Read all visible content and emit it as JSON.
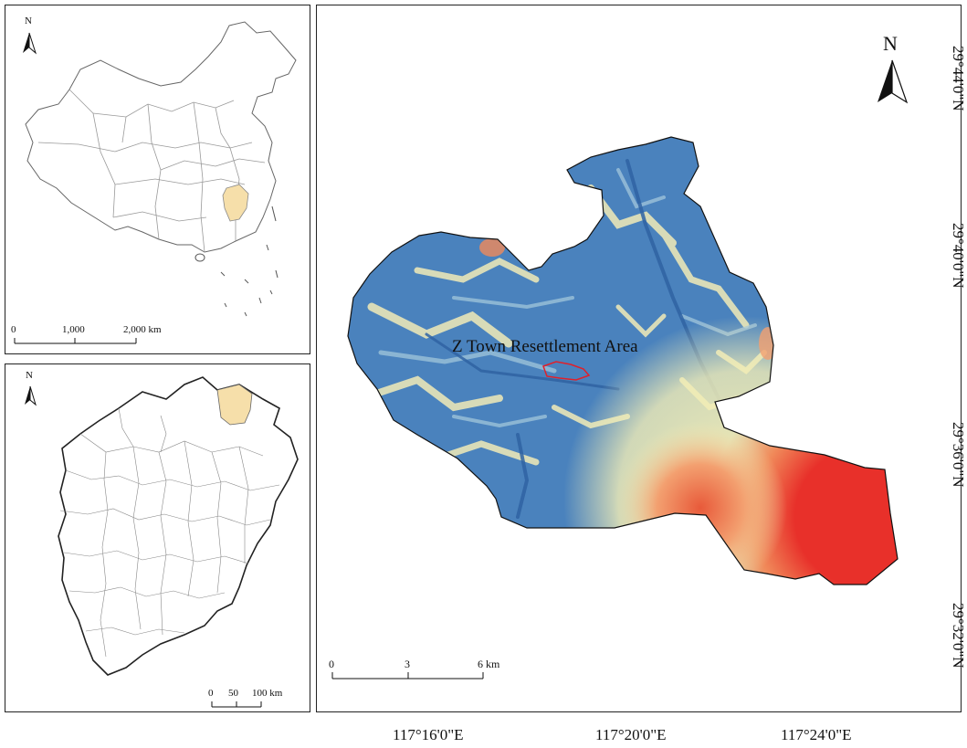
{
  "china_inset": {
    "north_label": "N",
    "scale_ticks": [
      "0",
      "1,000",
      "2,000 km"
    ],
    "highlight_color": "#f6dfaa"
  },
  "jiangxi_inset": {
    "north_label": "N",
    "scale_ticks": [
      "0",
      "50",
      "100 km"
    ],
    "highlight_color": "#f6dfaa"
  },
  "main_map": {
    "north_label": "N",
    "study_area_label": "Z Town Resettlement Area",
    "study_area_color": "#e0202a",
    "scale_ticks": [
      "0",
      "3",
      "6 km"
    ],
    "lat_labels": [
      "29°44'0\"N",
      "29°40'0\"N",
      "29°36'0\"N",
      "29°32'0\"N"
    ],
    "lon_labels": [
      "117°16'0\"E",
      "117°20'0\"E",
      "117°24'0\"E"
    ],
    "elevation_colors": [
      "#3f78b8",
      "#7eaed0",
      "#f3eeb6",
      "#f08a5a",
      "#e8302a"
    ]
  }
}
